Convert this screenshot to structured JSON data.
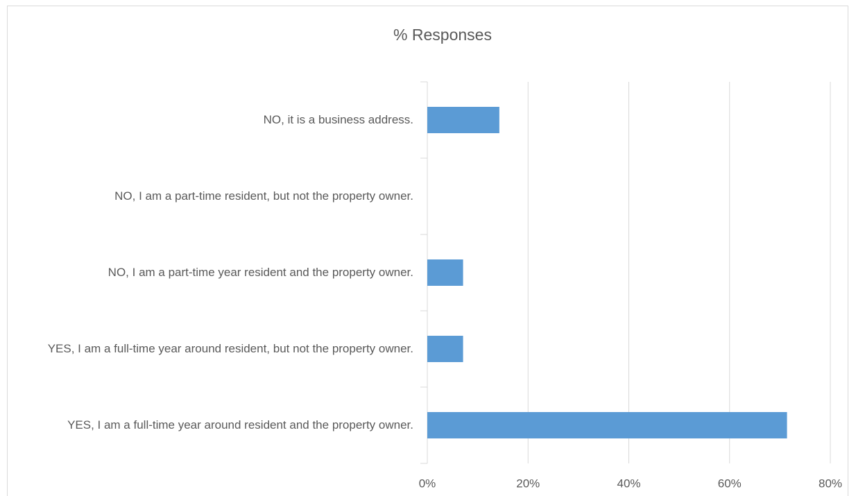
{
  "chart_data": {
    "type": "barh",
    "title": "% Responses",
    "categories": [
      "NO, it is a business address.",
      "NO, I am a part-time resident, but not the property owner.",
      "NO, I am a part-time year resident and the property owner.",
      "YES, I am a full-time year around resident, but not the property owner.",
      "YES, I am a full-time year around resident and the property owner."
    ],
    "values": [
      14.3,
      0,
      7.1,
      7.1,
      71.4
    ],
    "color": "#5b9bd5",
    "xlim": [
      0,
      80
    ],
    "xticks": [
      {
        "value": 0,
        "label": "0%"
      },
      {
        "value": 20,
        "label": "20%"
      },
      {
        "value": 40,
        "label": "40%"
      },
      {
        "value": 60,
        "label": "60%"
      },
      {
        "value": 80,
        "label": "80%"
      }
    ],
    "grid": true
  }
}
